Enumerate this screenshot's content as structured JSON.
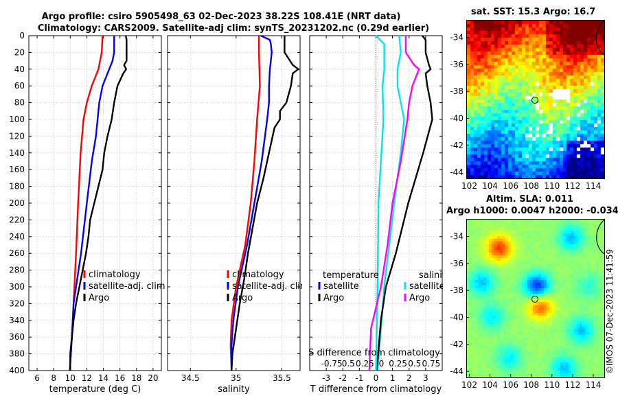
{
  "header": {
    "line1": "Argo profile: csiro 5905498_63 02-Dec-2023 38.22S 108.41E (NRT data)",
    "line2": "Climatology: CARS2009. Satellite-adj clim: synTS_20231202.nc (0.29d earlier)"
  },
  "colors": {
    "clim": "#ff0000",
    "sat": "#0000ff",
    "argo": "#000000",
    "sat_s": "#00e5ee",
    "argo_s": "#ff00ff"
  },
  "depth_ticks": [
    "0",
    "20",
    "40",
    "60",
    "80",
    "100",
    "120",
    "140",
    "160",
    "180",
    "200",
    "220",
    "240",
    "260",
    "280",
    "300",
    "320",
    "340",
    "360",
    "380",
    "400"
  ],
  "chart_data": [
    {
      "type": "line",
      "title": "",
      "xlabel": "temperature (deg C)",
      "ylabel": "",
      "xlim": [
        5,
        21
      ],
      "ylim": [
        400,
        0
      ],
      "xticks": [
        6,
        8,
        10,
        12,
        14,
        16,
        18,
        20
      ],
      "xtick_labels": [
        "6",
        "8",
        "10",
        "12",
        "14",
        "16",
        "18",
        "20"
      ],
      "legend": {
        "position": "lower-right",
        "entries": [
          "climatology",
          "satellite-adj. clim",
          "Argo"
        ]
      },
      "series": [
        {
          "name": "climatology",
          "depth": [
            0,
            20,
            40,
            60,
            80,
            100,
            140,
            200,
            260,
            320,
            360,
            400
          ],
          "values": [
            13.9,
            13.8,
            13.4,
            12.6,
            12.0,
            11.6,
            11.25,
            10.95,
            10.7,
            10.4,
            10.2,
            9.95
          ]
        },
        {
          "name": "satellite-adj. clim",
          "depth": [
            0,
            20,
            30,
            40,
            60,
            80,
            100,
            120,
            150,
            200,
            260,
            320,
            360,
            400
          ],
          "values": [
            15.3,
            15.3,
            15.1,
            14.7,
            13.9,
            13.5,
            13.3,
            13.1,
            12.6,
            12.0,
            11.3,
            10.4,
            10.2,
            9.95
          ]
        },
        {
          "name": "Argo",
          "depth": [
            0,
            5,
            20,
            30,
            35,
            40,
            45,
            60,
            80,
            100,
            120,
            140,
            160,
            180,
            200,
            220,
            240,
            260,
            280,
            300,
            320,
            340,
            360,
            380,
            400
          ],
          "values": [
            16.7,
            16.8,
            16.8,
            16.8,
            16.5,
            16.75,
            16.4,
            15.7,
            15.3,
            15.0,
            14.5,
            14.1,
            13.9,
            13.4,
            12.9,
            12.4,
            12.2,
            11.9,
            11.5,
            11.1,
            10.7,
            10.4,
            10.2,
            10.0,
            10.0
          ]
        }
      ]
    },
    {
      "type": "line",
      "title": "",
      "xlabel": "salinity",
      "ylabel": "",
      "xlim": [
        34.25,
        35.7
      ],
      "ylim": [
        400,
        0
      ],
      "xticks": [
        34.5,
        35,
        35.5
      ],
      "xtick_labels": [
        "34.5",
        "35",
        "35.5"
      ],
      "legend": {
        "position": "lower-right",
        "entries": [
          "climatology",
          "satellite-adj. clim",
          "Argo"
        ]
      },
      "series": [
        {
          "name": "climatology",
          "depth": [
            0,
            20,
            60,
            100,
            150,
            200,
            250,
            300,
            340,
            370,
            400
          ],
          "values": [
            35.25,
            35.25,
            35.26,
            35.23,
            35.2,
            35.16,
            35.1,
            35.0,
            34.95,
            34.94,
            34.95
          ]
        },
        {
          "name": "satellite-adj. clim",
          "depth": [
            0,
            5,
            10,
            20,
            40,
            60,
            80,
            100,
            150,
            200,
            250,
            300,
            340,
            370,
            400
          ],
          "values": [
            35.27,
            35.37,
            35.38,
            35.39,
            35.37,
            35.36,
            35.36,
            35.34,
            35.28,
            35.2,
            35.12,
            35.02,
            34.97,
            34.95,
            34.95
          ]
        },
        {
          "name": "Argo",
          "depth": [
            0,
            20,
            35,
            40,
            45,
            60,
            80,
            90,
            100,
            110,
            140,
            170,
            200,
            230,
            260,
            290,
            320,
            350,
            380,
            400
          ],
          "values": [
            35.53,
            35.53,
            35.62,
            35.68,
            35.62,
            35.6,
            35.55,
            35.48,
            35.48,
            35.42,
            35.36,
            35.3,
            35.23,
            35.18,
            35.13,
            35.09,
            35.04,
            35.0,
            34.96,
            34.95
          ]
        }
      ]
    },
    {
      "type": "line",
      "title": "",
      "xlabel": "T difference from climatology",
      "ylabel": "",
      "xlim": [
        -4,
        4
      ],
      "ylim": [
        400,
        0
      ],
      "xticks": [
        -3,
        -2,
        -1,
        0,
        1,
        2,
        3
      ],
      "xtick_labels": [
        "-3",
        "-2",
        "-1",
        "0",
        "1",
        "2",
        "3"
      ],
      "secondary_xlabel": "S difference from climatology",
      "secondary_xtick_labels": [
        "-0.75",
        "0.5",
        "0.25",
        "0",
        "0.25",
        "0.5",
        "0.75"
      ],
      "legend": {
        "position": "lower",
        "groups": [
          {
            "title": "temperature",
            "entries": [
              "satellite",
              "Argo"
            ]
          },
          {
            "title": "salinity",
            "entries": [
              "satellite",
              "Argo"
            ]
          }
        ]
      },
      "series": [
        {
          "name": "temperature satellite",
          "depth": [
            0,
            20,
            40,
            60,
            80,
            100,
            140,
            200,
            300,
            400
          ],
          "values": [
            1.4,
            1.5,
            1.3,
            1.3,
            1.5,
            1.7,
            1.5,
            1.1,
            0.5,
            0.1
          ]
        },
        {
          "name": "temperature Argo",
          "depth": [
            0,
            5,
            20,
            35,
            40,
            45,
            60,
            80,
            100,
            140,
            200,
            260,
            300,
            340,
            400
          ],
          "values": [
            2.8,
            3.0,
            3.0,
            3.2,
            3.3,
            3.0,
            3.1,
            3.3,
            3.4,
            2.85,
            1.95,
            1.2,
            0.6,
            0.3,
            0.05
          ]
        },
        {
          "name": "salinity satellite",
          "depth": [
            0,
            10,
            20,
            40,
            60,
            100,
            150,
            200,
            300,
            400
          ],
          "values": [
            0.0,
            0.5,
            0.5,
            0.5,
            0.4,
            0.45,
            0.3,
            0.15,
            0.1,
            0.0
          ]
        },
        {
          "name": "salinity Argo",
          "depth": [
            0,
            20,
            35,
            40,
            60,
            80,
            100,
            150,
            200,
            250,
            300,
            350,
            400
          ],
          "values": [
            1.8,
            1.8,
            2.3,
            2.6,
            2.2,
            2.0,
            1.9,
            1.5,
            1.0,
            0.7,
            0.3,
            -0.3,
            -0.4
          ]
        }
      ]
    }
  ],
  "maps": {
    "sst": {
      "title": "sat. SST: 15.3 Argo: 16.7",
      "lat_ticks": [
        "-34",
        "-36",
        "-38",
        "-40",
        "-42",
        "-44"
      ],
      "lon_ticks": [
        "102",
        "104",
        "106",
        "108",
        "110",
        "112",
        "114"
      ],
      "argo_lat": -38.22,
      "argo_lon": 108.41
    },
    "sla": {
      "title1": "Altim. SLA: 0.011",
      "title2": "Argo h1000: 0.0047 h2000: -0.034",
      "lat_ticks": [
        "-34",
        "-36",
        "-38",
        "-40",
        "-42",
        "-44"
      ],
      "lon_ticks": [
        "102",
        "104",
        "106",
        "108",
        "110",
        "112",
        "114"
      ],
      "argo_lat": -38.22,
      "argo_lon": 108.41
    }
  },
  "stamp": "©IMOS 07-Dec-2023 11:41:59"
}
